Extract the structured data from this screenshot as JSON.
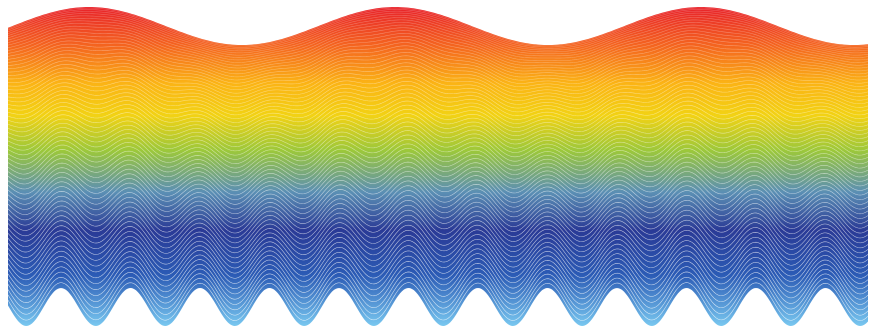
{
  "artwork": {
    "subject": "rainbow-wave-line-art",
    "background_color": "#ffffff",
    "stroke_color": "#ffffff",
    "gradient_colors": [
      "#e8222a",
      "#f4641f",
      "#fbb415",
      "#f2d214",
      "#9cc83a",
      "#5b8fb4",
      "#2a3a96",
      "#2b5bb5",
      "#79c8f0"
    ]
  }
}
